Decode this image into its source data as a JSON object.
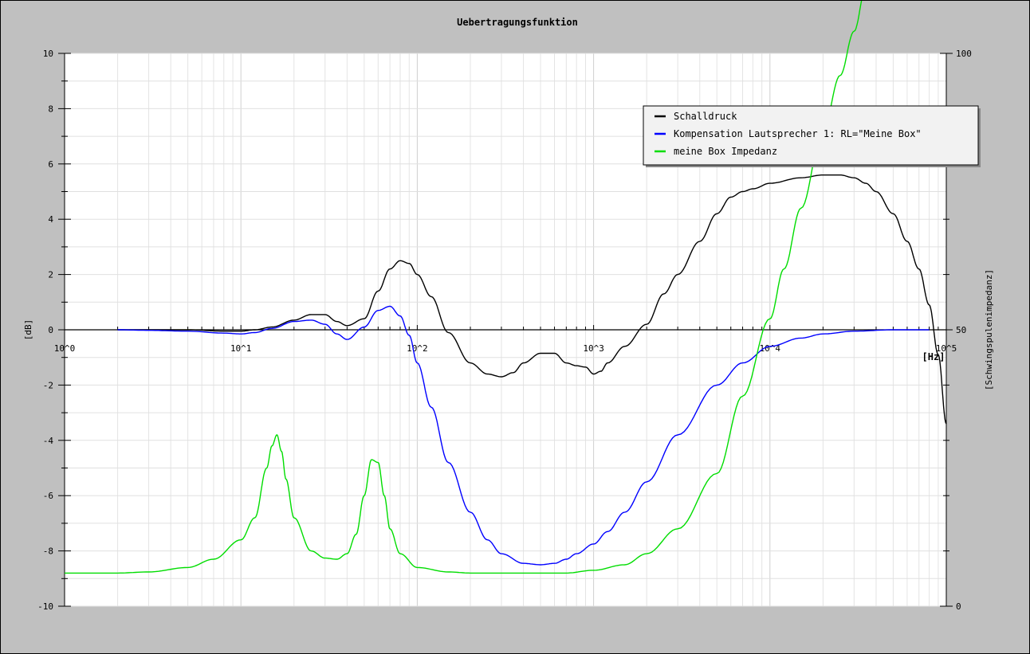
{
  "chart_data": {
    "type": "line",
    "title": "Uebertragungsfunktion",
    "xlabel": "[Hz]",
    "ylabel": "[dB]",
    "y2label": "[Schwingspulenimpedanz]",
    "x_scale": "log",
    "xlim": [
      1,
      100000
    ],
    "ylim": [
      -10,
      10
    ],
    "y2lim": [
      0,
      100
    ],
    "x_tick_labels": [
      "10^0",
      "10^1",
      "10^2",
      "10^3",
      "10^4",
      "10^5"
    ],
    "y_tick_labels": [
      "10",
      "8",
      "6",
      "4",
      "2",
      "0",
      "-2",
      "-4",
      "-6",
      "-8",
      "-10"
    ],
    "y2_tick_labels": [
      "100",
      "50",
      "0"
    ],
    "grid": true,
    "legend_position": "top-right",
    "series": [
      {
        "name": "Schalldruck",
        "color": "#000000",
        "axis": "left",
        "x": [
          2,
          3,
          5,
          8,
          10,
          12,
          15,
          20,
          25,
          30,
          35,
          40,
          50,
          60,
          70,
          80,
          90,
          100,
          120,
          150,
          200,
          250,
          300,
          350,
          400,
          500,
          600,
          700,
          800,
          900,
          1000,
          1100,
          1200,
          1500,
          2000,
          2500,
          3000,
          4000,
          5000,
          6000,
          7000,
          8000,
          10000,
          15000,
          20000,
          25000,
          30000,
          35000,
          40000,
          50000,
          60000,
          70000,
          80000,
          90000,
          100000
        ],
        "y": [
          0,
          0,
          0,
          -0.05,
          -0.05,
          0,
          0.1,
          0.35,
          0.55,
          0.55,
          0.3,
          0.15,
          0.4,
          1.4,
          2.2,
          2.5,
          2.4,
          2.0,
          1.2,
          -0.1,
          -1.2,
          -1.6,
          -1.7,
          -1.55,
          -1.2,
          -0.85,
          -0.85,
          -1.2,
          -1.3,
          -1.35,
          -1.6,
          -1.5,
          -1.2,
          -0.6,
          0.2,
          1.3,
          2.0,
          3.2,
          4.2,
          4.8,
          5.0,
          5.1,
          5.3,
          5.5,
          5.6,
          5.6,
          5.5,
          5.3,
          5.0,
          4.2,
          3.2,
          2.2,
          0.9,
          -0.9,
          -3.4
        ]
      },
      {
        "name": "Kompensation Lautsprecher 1: RL=\"Meine Box\"",
        "color": "#0000ff",
        "axis": "left",
        "x": [
          2,
          3,
          5,
          8,
          10,
          12,
          15,
          20,
          25,
          30,
          35,
          40,
          50,
          60,
          70,
          80,
          90,
          100,
          120,
          150,
          200,
          250,
          300,
          400,
          500,
          600,
          700,
          800,
          1000,
          1200,
          1500,
          2000,
          3000,
          5000,
          7000,
          10000,
          15000,
          20000,
          30000,
          50000,
          80000
        ],
        "y": [
          0,
          -0.02,
          -0.05,
          -0.12,
          -0.15,
          -0.1,
          0.05,
          0.3,
          0.35,
          0.2,
          -0.15,
          -0.35,
          0.1,
          0.7,
          0.85,
          0.5,
          -0.2,
          -1.2,
          -2.8,
          -4.8,
          -6.6,
          -7.6,
          -8.1,
          -8.45,
          -8.5,
          -8.45,
          -8.3,
          -8.1,
          -7.75,
          -7.3,
          -6.6,
          -5.5,
          -3.8,
          -2.0,
          -1.2,
          -0.6,
          -0.3,
          -0.15,
          -0.05,
          0,
          0
        ]
      },
      {
        "name": "meine Box Impedanz",
        "color": "#00dd00",
        "axis": "right",
        "x": [
          1,
          2,
          3,
          5,
          7,
          10,
          12,
          14,
          15,
          16,
          17,
          18,
          20,
          25,
          30,
          35,
          40,
          45,
          50,
          55,
          60,
          65,
          70,
          80,
          100,
          150,
          200,
          300,
          500,
          700,
          1000,
          1500,
          2000,
          3000,
          5000,
          7000,
          10000,
          12000,
          15000,
          20000,
          25000,
          30000,
          35000
        ],
        "y": [
          6,
          6,
          6.2,
          7,
          8.5,
          12,
          16,
          25,
          29,
          31,
          28,
          23,
          16,
          10,
          8.7,
          8.5,
          9.5,
          13,
          20,
          26.5,
          26,
          20,
          14,
          9.5,
          7,
          6.2,
          6,
          6,
          6,
          6,
          6.5,
          7.5,
          9.5,
          14,
          24,
          38,
          52,
          61,
          72,
          86,
          96,
          104,
          112
        ]
      }
    ]
  }
}
